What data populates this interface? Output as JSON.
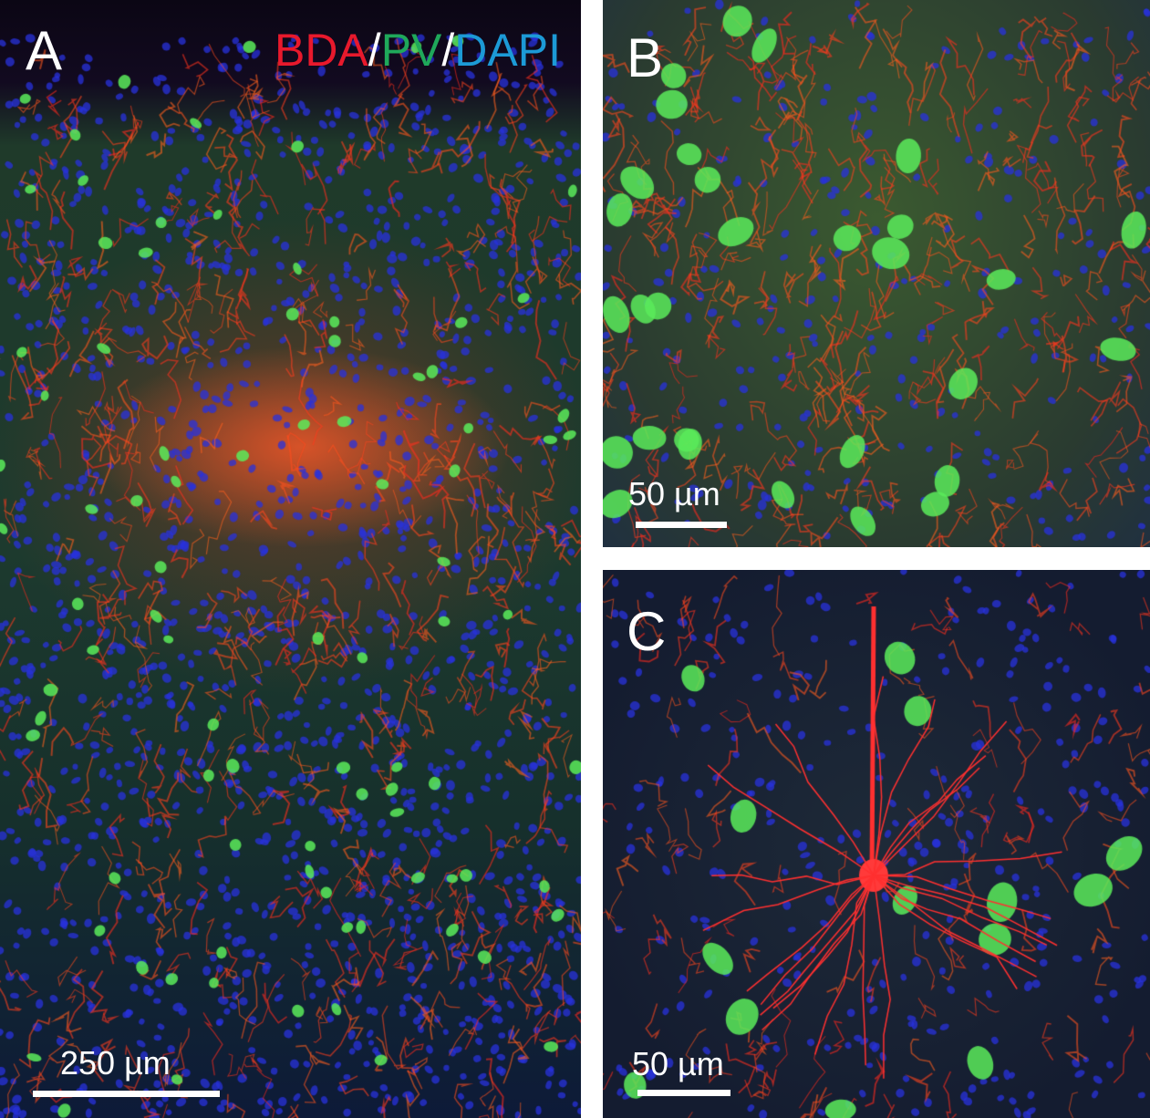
{
  "panels": [
    {
      "label": "A",
      "scale_text": "250 µm",
      "legend": [
        {
          "text": "BDA",
          "color": "#e8192c"
        },
        {
          "text": "/",
          "color": "#ffffff"
        },
        {
          "text": "PV",
          "color": "#1fa85a"
        },
        {
          "text": "/",
          "color": "#ffffff"
        },
        {
          "text": "DAPI",
          "color": "#1c9ad6"
        }
      ]
    },
    {
      "label": "B",
      "scale_text": "50 µm"
    },
    {
      "label": "C",
      "scale_text": "50 µm"
    }
  ]
}
